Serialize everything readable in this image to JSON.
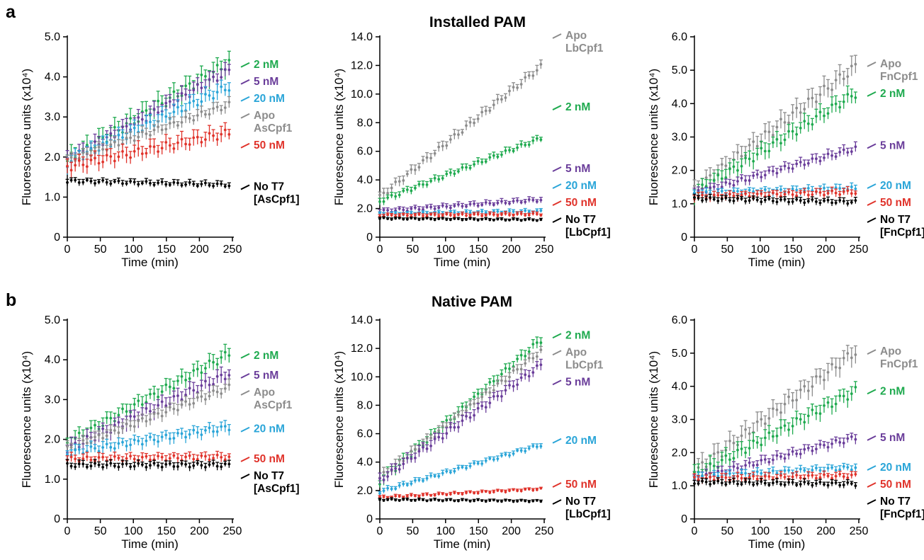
{
  "panels": [
    {
      "letter": "a",
      "title": "Installed PAM"
    },
    {
      "letter": "b",
      "title": "Native PAM"
    }
  ],
  "chart_data": [
    {
      "type": "line",
      "panel": "a",
      "enzyme": "AsCpf1",
      "title": "",
      "xlabel": "Time (min)",
      "ylabel": "Fluorescence units (x10⁴)",
      "xlim": [
        0,
        250
      ],
      "ylim": [
        0,
        5.0
      ],
      "xticks": [
        0,
        50,
        100,
        150,
        200,
        250
      ],
      "yticks": [
        "0",
        "1.0",
        "2.0",
        "3.0",
        "4.0",
        "5.0"
      ],
      "series": [
        {
          "name": "2 nM",
          "color": "#1faa4f",
          "start": 1.9,
          "end": 4.35,
          "err": 0.25,
          "label_lines": [
            "2 nM"
          ]
        },
        {
          "name": "5 nM",
          "color": "#6a3d9a",
          "start": 1.9,
          "end": 4.15,
          "err": 0.2,
          "label_lines": [
            "5 nM"
          ]
        },
        {
          "name": "20 nM",
          "color": "#2aa5d8",
          "start": 1.85,
          "end": 3.75,
          "err": 0.2,
          "label_lines": [
            "20 nM"
          ]
        },
        {
          "name": "Apo AsCpf1",
          "color": "#8c8c8c",
          "start": 1.9,
          "end": 3.3,
          "err": 0.15,
          "label_lines": [
            "Apo",
            "AsCpf1"
          ]
        },
        {
          "name": "50 nM",
          "color": "#e0332b",
          "start": 1.75,
          "end": 2.6,
          "err": 0.2,
          "label_lines": [
            "50 nM"
          ]
        },
        {
          "name": "No T7 [AsCpf1]",
          "color": "#000000",
          "start": 1.4,
          "end": 1.3,
          "err": 0.08,
          "label_lines": [
            "No T7",
            "[AsCpf1]"
          ]
        }
      ]
    },
    {
      "type": "line",
      "panel": "a",
      "enzyme": "LbCpf1",
      "title": "",
      "xlabel": "Time (min)",
      "ylabel": "Fluorescence units (x10⁴)",
      "xlim": [
        0,
        250
      ],
      "ylim": [
        0,
        14.0
      ],
      "xticks": [
        0,
        50,
        100,
        150,
        200,
        250
      ],
      "yticks": [
        "0",
        "2.0",
        "4.0",
        "6.0",
        "8.0",
        "10.0",
        "12.0",
        "14.0"
      ],
      "series": [
        {
          "name": "Apo LbCpf1",
          "color": "#8c8c8c",
          "start": 2.8,
          "end": 11.9,
          "err": 0.35,
          "label_lines": [
            "Apo",
            "LbCpf1"
          ]
        },
        {
          "name": "2 nM",
          "color": "#1faa4f",
          "start": 2.5,
          "end": 6.9,
          "err": 0.25,
          "label_lines": [
            "2 nM"
          ]
        },
        {
          "name": "5 nM",
          "color": "#6a3d9a",
          "start": 1.8,
          "end": 2.6,
          "err": 0.2,
          "label_lines": [
            "5 nM"
          ]
        },
        {
          "name": "20 nM",
          "color": "#2aa5d8",
          "start": 1.6,
          "end": 1.8,
          "err": 0.15,
          "label_lines": [
            "20 nM"
          ]
        },
        {
          "name": "50 nM",
          "color": "#e0332b",
          "start": 1.5,
          "end": 1.6,
          "err": 0.15,
          "label_lines": [
            "50 nM"
          ]
        },
        {
          "name": "No T7 [LbCpf1]",
          "color": "#000000",
          "start": 1.3,
          "end": 1.2,
          "err": 0.1,
          "label_lines": [
            "No T7",
            "[LbCpf1]"
          ]
        }
      ]
    },
    {
      "type": "line",
      "panel": "a",
      "enzyme": "FnCpf1",
      "title": "",
      "xlabel": "Time (min)",
      "ylabel": "Fluorescence units (x10⁴)",
      "xlim": [
        0,
        250
      ],
      "ylim": [
        0,
        6.0
      ],
      "xticks": [
        0,
        50,
        100,
        150,
        200,
        250
      ],
      "yticks": [
        "0",
        "1.0",
        "2.0",
        "3.0",
        "4.0",
        "5.0",
        "6.0"
      ],
      "series": [
        {
          "name": "Apo FnCpf1",
          "color": "#8c8c8c",
          "start": 1.4,
          "end": 5.1,
          "err": 0.3,
          "label_lines": [
            "Apo",
            "FnCpf1"
          ]
        },
        {
          "name": "2 nM",
          "color": "#1faa4f",
          "start": 1.3,
          "end": 4.3,
          "err": 0.25,
          "label_lines": [
            "2 nM"
          ]
        },
        {
          "name": "5 nM",
          "color": "#6a3d9a",
          "start": 1.3,
          "end": 2.65,
          "err": 0.15,
          "label_lines": [
            "5 nM"
          ]
        },
        {
          "name": "20 nM",
          "color": "#2aa5d8",
          "start": 1.3,
          "end": 1.45,
          "err": 0.12,
          "label_lines": [
            "20 nM"
          ]
        },
        {
          "name": "50 nM",
          "color": "#e0332b",
          "start": 1.2,
          "end": 1.35,
          "err": 0.12,
          "label_lines": [
            "50 nM"
          ]
        },
        {
          "name": "No T7 [FnCpf1]",
          "color": "#000000",
          "start": 1.15,
          "end": 1.05,
          "err": 0.1,
          "label_lines": [
            "No T7",
            "[FnCpf1]"
          ]
        }
      ]
    },
    {
      "type": "line",
      "panel": "b",
      "enzyme": "AsCpf1",
      "title": "",
      "xlabel": "Time (min)",
      "ylabel": "Fluorescence units (x10⁴)",
      "xlim": [
        0,
        250
      ],
      "ylim": [
        0,
        5.0
      ],
      "xticks": [
        0,
        50,
        100,
        150,
        200,
        250
      ],
      "yticks": [
        "0",
        "1.0",
        "2.0",
        "3.0",
        "4.0",
        "5.0"
      ],
      "series": [
        {
          "name": "2 nM",
          "color": "#1faa4f",
          "start": 1.9,
          "end": 4.15,
          "err": 0.2,
          "label_lines": [
            "2 nM"
          ]
        },
        {
          "name": "5 nM",
          "color": "#6a3d9a",
          "start": 1.75,
          "end": 3.65,
          "err": 0.2,
          "label_lines": [
            "5 nM"
          ]
        },
        {
          "name": "Apo AsCpf1",
          "color": "#8c8c8c",
          "start": 1.75,
          "end": 3.3,
          "err": 0.15,
          "label_lines": [
            "Apo",
            "AsCpf1"
          ]
        },
        {
          "name": "20 nM",
          "color": "#2aa5d8",
          "start": 1.65,
          "end": 2.3,
          "err": 0.15,
          "label_lines": [
            "20 nM"
          ]
        },
        {
          "name": "50 nM",
          "color": "#e0332b",
          "start": 1.5,
          "end": 1.55,
          "err": 0.12,
          "label_lines": [
            "50 nM"
          ]
        },
        {
          "name": "No T7 [AsCpf1]",
          "color": "#000000",
          "start": 1.35,
          "end": 1.35,
          "err": 0.1,
          "label_lines": [
            "No T7",
            "[AsCpf1]"
          ]
        }
      ]
    },
    {
      "type": "line",
      "panel": "b",
      "enzyme": "LbCpf1",
      "title": "",
      "xlabel": "Time (min)",
      "ylabel": "Fluorescence units (x10⁴)",
      "xlim": [
        0,
        250
      ],
      "ylim": [
        0,
        14.0
      ],
      "xticks": [
        0,
        50,
        100,
        150,
        200,
        250
      ],
      "yticks": [
        "0",
        "2.0",
        "4.0",
        "6.0",
        "8.0",
        "10.0",
        "12.0",
        "14.0"
      ],
      "series": [
        {
          "name": "2 nM",
          "color": "#1faa4f",
          "start": 2.6,
          "end": 12.6,
          "err": 0.4,
          "label_lines": [
            "2 nM"
          ]
        },
        {
          "name": "Apo LbCpf1",
          "color": "#8c8c8c",
          "start": 2.9,
          "end": 11.8,
          "err": 0.35,
          "label_lines": [
            "Apo",
            "LbCpf1"
          ]
        },
        {
          "name": "5 nM",
          "color": "#6a3d9a",
          "start": 2.7,
          "end": 10.8,
          "err": 0.4,
          "label_lines": [
            "5 nM"
          ]
        },
        {
          "name": "20 nM",
          "color": "#2aa5d8",
          "start": 1.9,
          "end": 5.2,
          "err": 0.2,
          "label_lines": [
            "20 nM"
          ]
        },
        {
          "name": "50 nM",
          "color": "#e0332b",
          "start": 1.5,
          "end": 2.1,
          "err": 0.12,
          "label_lines": [
            "50 nM"
          ]
        },
        {
          "name": "No T7 [LbCpf1]",
          "color": "#000000",
          "start": 1.35,
          "end": 1.25,
          "err": 0.1,
          "label_lines": [
            "No T7",
            "[LbCpf1]"
          ]
        }
      ]
    },
    {
      "type": "line",
      "panel": "b",
      "enzyme": "FnCpf1",
      "title": "",
      "xlabel": "Time (min)",
      "ylabel": "Fluorescence units (x10⁴)",
      "xlim": [
        0,
        250
      ],
      "ylim": [
        0,
        6.0
      ],
      "xticks": [
        0,
        50,
        100,
        150,
        200,
        250
      ],
      "yticks": [
        "0",
        "1.0",
        "2.0",
        "3.0",
        "4.0",
        "5.0",
        "6.0"
      ],
      "series": [
        {
          "name": "Apo FnCpf1",
          "color": "#8c8c8c",
          "start": 1.4,
          "end": 5.05,
          "err": 0.3,
          "label_lines": [
            "Apo",
            "FnCpf1"
          ]
        },
        {
          "name": "2 nM",
          "color": "#1faa4f",
          "start": 1.3,
          "end": 3.85,
          "err": 0.25,
          "label_lines": [
            "2 nM"
          ]
        },
        {
          "name": "5 nM",
          "color": "#6a3d9a",
          "start": 1.2,
          "end": 2.45,
          "err": 0.15,
          "label_lines": [
            "5 nM"
          ]
        },
        {
          "name": "20 nM",
          "color": "#2aa5d8",
          "start": 1.25,
          "end": 1.55,
          "err": 0.12,
          "label_lines": [
            "20 nM"
          ]
        },
        {
          "name": "50 nM",
          "color": "#e0332b",
          "start": 1.2,
          "end": 1.3,
          "err": 0.12,
          "label_lines": [
            "50 nM"
          ]
        },
        {
          "name": "No T7 [FnCpf1]",
          "color": "#000000",
          "start": 1.1,
          "end": 1.05,
          "err": 0.1,
          "label_lines": [
            "No T7",
            "[FnCpf1]"
          ]
        }
      ]
    }
  ]
}
